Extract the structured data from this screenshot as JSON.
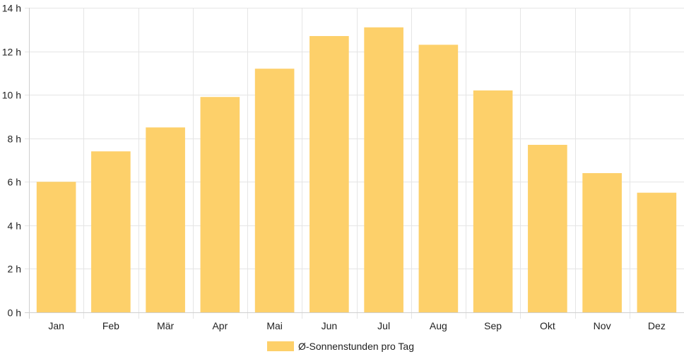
{
  "chart_data": {
    "type": "bar",
    "categories": [
      "Jan",
      "Feb",
      "Mär",
      "Apr",
      "Mai",
      "Jun",
      "Jul",
      "Aug",
      "Sep",
      "Okt",
      "Nov",
      "Dez"
    ],
    "series": [
      {
        "name": "Ø-Sonnenstunden pro Tag",
        "values": [
          6.0,
          7.4,
          8.5,
          9.9,
          11.2,
          12.7,
          13.1,
          12.3,
          10.2,
          7.7,
          6.4,
          5.5
        ]
      }
    ],
    "y_ticks": [
      "0 h",
      "2 h",
      "4 h",
      "6 h",
      "8 h",
      "10 h",
      "12 h",
      "14 h"
    ],
    "ylim": [
      0,
      14
    ],
    "grid": true,
    "legend_position": "bottom",
    "bar_color": "#fdd06a",
    "grid_color": "#e5e5e5"
  }
}
